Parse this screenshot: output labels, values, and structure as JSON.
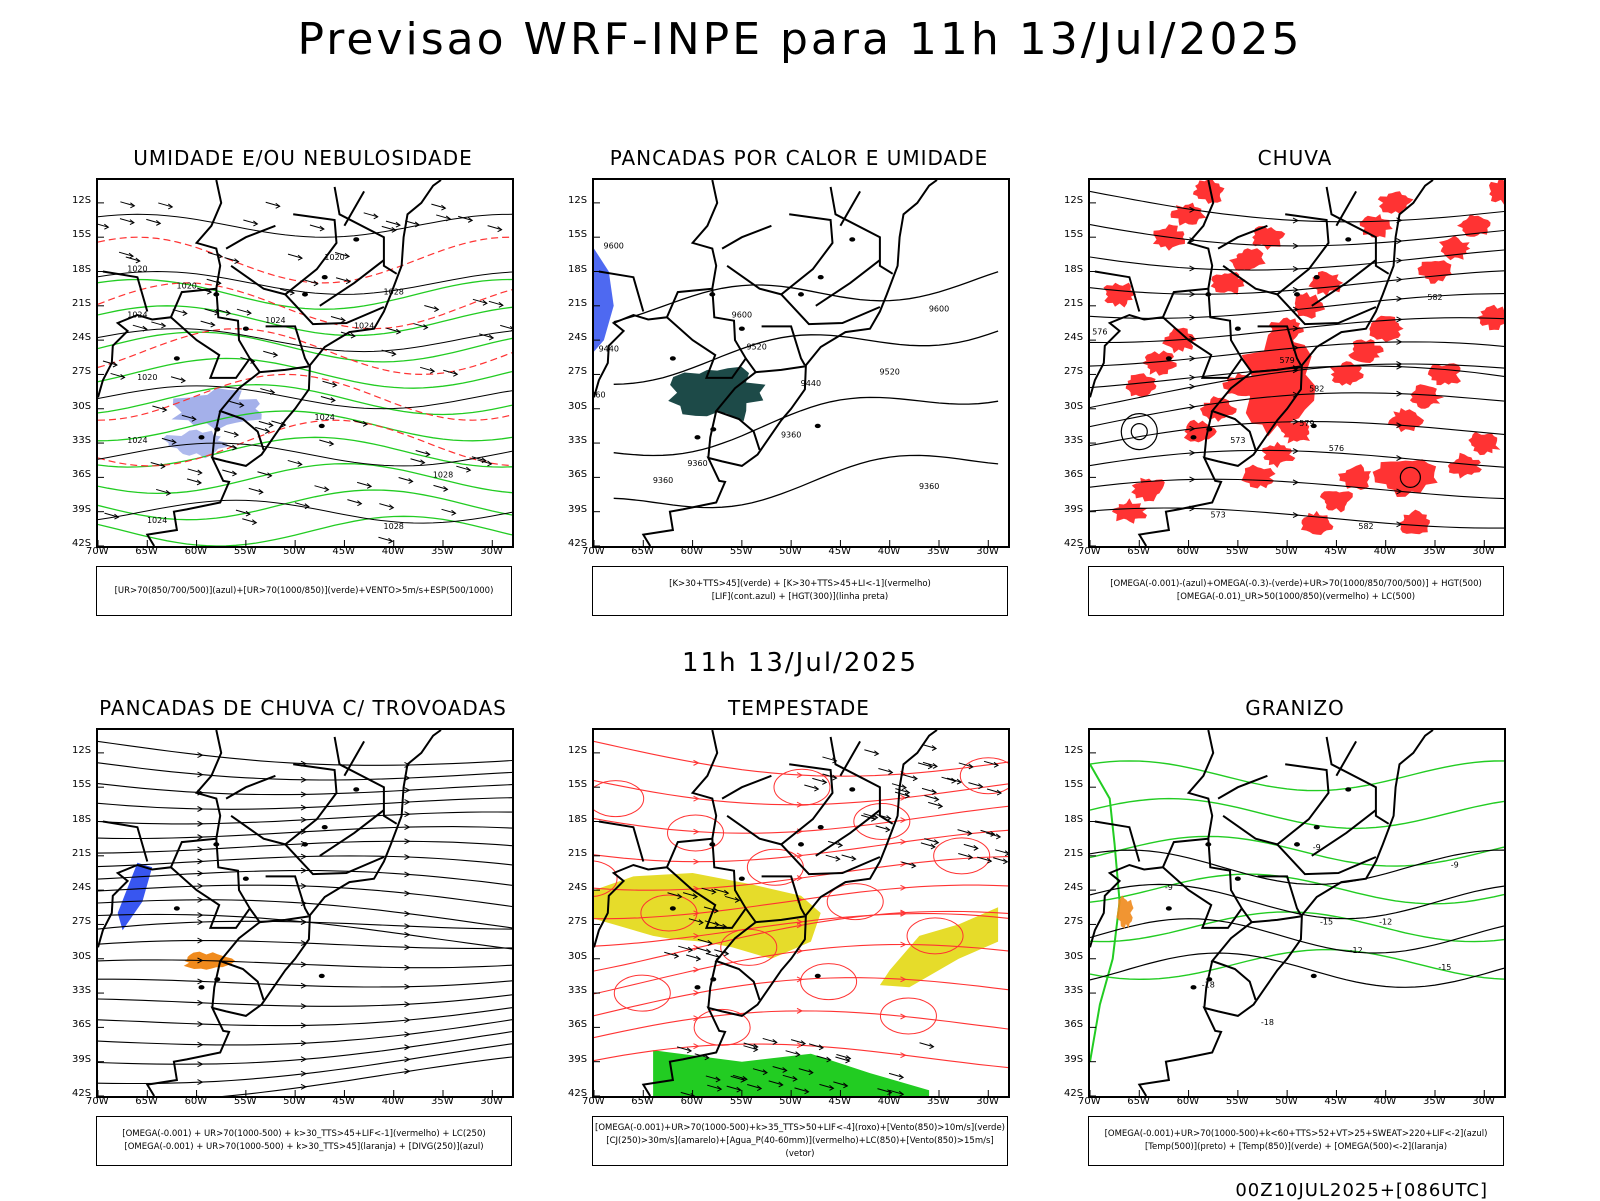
{
  "header": {
    "title": "Previsao WRF-INPE  para 11h 13/Jul/2025"
  },
  "middle_label": "11h 13/Jul/2025",
  "footer": "00Z10JUL2025+[086UTC]",
  "axes": {
    "lat_ticks": [
      "12S",
      "15S",
      "18S",
      "21S",
      "24S",
      "27S",
      "30S",
      "33S",
      "36S",
      "39S",
      "42S"
    ],
    "lon_ticks": [
      "70W",
      "65W",
      "60W",
      "55W",
      "50W",
      "45W",
      "40W",
      "35W",
      "30W"
    ]
  },
  "panels": [
    {
      "title": "UMIDADE E/OU NEBULOSIDADE",
      "legend": [
        "[UR>70(850/700/500)](azul)+[UR>70(1000/850)](verde)+VENTO>5m/s+ESP(500/1000)"
      ]
    },
    {
      "title": "PANCADAS POR CALOR E UMIDADE",
      "legend": [
        "[K>30+TTS>45](verde) + [K>30+TTS>45+LI<-1](vermelho)",
        "[LIF](cont.azul) + [HGT(300)](linha preta)"
      ]
    },
    {
      "title": "CHUVA",
      "legend": [
        "[OMEGA(-0.001)-(azul)+OMEGA(-0.3)-(verde)+UR>70(1000/850/700/500)] + HGT(500)",
        "[OMEGA(-0.01)_UR>50(1000/850)(vermelho) + LC(500)"
      ]
    },
    {
      "title": "PANCADAS DE CHUVA C/ TROVOADAS",
      "legend": [
        "[OMEGA(-0.001) + UR>70(1000-500) + k>30_TTS>45+LIF<-1](vermelho) + LC(250)",
        "[OMEGA(-0.001) + UR>70(1000-500) + k>30_TTS>45](laranja) + [DIVG(250)](azul)"
      ]
    },
    {
      "title": "TEMPESTADE",
      "legend": [
        "[OMEGA(-0.001)+UR>70(1000-500)+k>35_TTS>50+LIF<-4](roxo)+[Vento(850)>10m/s](verde)",
        "[CJ(250)>30m/s](amarelo)+[Agua_P(40-60mm)](vermelho)+LC(850)+[Vento(850)>15m/s](vetor)"
      ]
    },
    {
      "title": "GRANIZO",
      "legend": [
        "[OMEGA(-0.001)+UR>70(1000-500)+k<60+TTS>52+VT>25+SWEAT>220+LIF<-2](azul)",
        "[Temp(500)](preto) + [Temp(850)](verde) + [OMEGA(500)<-2](laranja)"
      ]
    }
  ],
  "contour_labels": {
    "p1": [
      "1020",
      "1024",
      "1020",
      "1024",
      "1020",
      "1024",
      "1028",
      "1024",
      "1028",
      "1024",
      "1028",
      "1020",
      "1024"
    ],
    "p2": [
      "9600",
      "9600",
      "9600",
      "9520",
      "9520",
      "9440",
      "9440",
      "9360",
      "9360",
      "9360",
      "9360",
      "360"
    ],
    "p3": [
      "582",
      "579",
      "582",
      "579",
      "576",
      "573",
      "576",
      "573",
      "582"
    ],
    "p6": [
      "-9",
      "-9",
      "-12",
      "-12",
      "-15",
      "-15",
      "-18",
      "-18",
      "-9"
    ]
  },
  "colors": {
    "red": "#ff3333",
    "green": "#22cc22",
    "blue": "#2244ee",
    "yellow": "#e6dc2a",
    "teal": "#1d4a48",
    "orange": "#f08a1c"
  }
}
